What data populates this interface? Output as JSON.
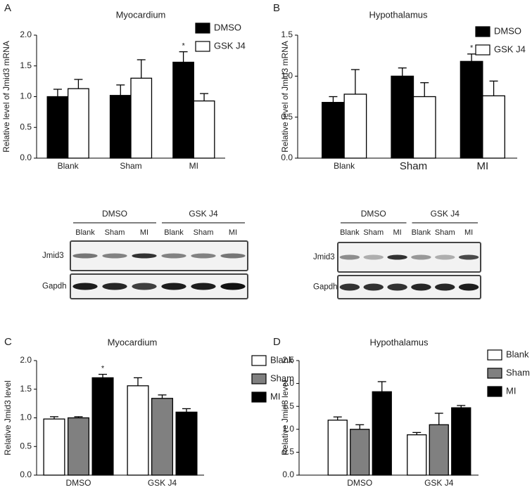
{
  "chart_data": [
    {
      "type": "bar",
      "panel": "A",
      "title": "Myocardium",
      "y_label": "Relative level of Jmid3 mRNA",
      "categories": [
        "Blank",
        "Sham",
        "MI"
      ],
      "series": [
        {
          "name": "DMSO",
          "color": "#000000",
          "values": [
            1.0,
            1.02,
            1.56
          ],
          "errors": [
            0.12,
            0.17,
            0.17
          ]
        },
        {
          "name": "GSK J4",
          "color": "#ffffff",
          "values": [
            1.13,
            1.3,
            0.93
          ],
          "errors": [
            0.15,
            0.3,
            0.12
          ]
        }
      ],
      "ylim": [
        0,
        2
      ],
      "yticks": [
        {
          "value": 0,
          "label": "0.0"
        },
        {
          "value": 0.5,
          "label": "0.5"
        },
        {
          "value": 1,
          "label": "1.0"
        },
        {
          "value": 1.5,
          "label": "1.5"
        },
        {
          "value": 2,
          "label": "2.0"
        }
      ],
      "annotations": [
        {
          "text": "*",
          "category": "MI",
          "series": "DMSO"
        }
      ]
    },
    {
      "type": "bar",
      "panel": "B",
      "title": "Hypothalamus",
      "y_label": "Relative level of Jmid3 mRNA",
      "categories": [
        "Blank",
        "Sham",
        "MI"
      ],
      "series": [
        {
          "name": "DMSO",
          "color": "#000000",
          "values": [
            0.68,
            1.0,
            1.18
          ],
          "errors": [
            0.07,
            0.1,
            0.09
          ]
        },
        {
          "name": "GSK J4",
          "color": "#ffffff",
          "values": [
            0.78,
            0.75,
            0.76
          ],
          "errors": [
            0.3,
            0.17,
            0.18
          ]
        }
      ],
      "ylim": [
        0,
        1.5
      ],
      "yticks": [
        {
          "value": 0,
          "label": "0.0"
        },
        {
          "value": 0.5,
          "label": "0.5"
        },
        {
          "value": 1,
          "label": "1.0"
        },
        {
          "value": 1.5,
          "label": "1.5"
        }
      ],
      "annotations": [
        {
          "text": "*",
          "category": "MI",
          "series": "DMSO"
        }
      ]
    },
    {
      "type": "bar",
      "panel": "C",
      "title": "Myocardium",
      "y_label": "Relative Jmid3 level",
      "categories": [
        "DMSO",
        "GSK J4"
      ],
      "series": [
        {
          "name": "Blank",
          "color": "#ffffff",
          "values": [
            0.98,
            1.56
          ],
          "errors": [
            0.04,
            0.14
          ]
        },
        {
          "name": "Sham",
          "color": "#808080",
          "values": [
            1.0,
            1.34
          ],
          "errors": [
            0.02,
            0.06
          ]
        },
        {
          "name": "MI",
          "color": "#000000",
          "values": [
            1.7,
            1.1
          ],
          "errors": [
            0.06,
            0.06
          ]
        }
      ],
      "ylim": [
        0,
        2
      ],
      "yticks": [
        {
          "value": 0,
          "label": "0.0"
        },
        {
          "value": 0.5,
          "label": "0.5"
        },
        {
          "value": 1,
          "label": "1.0"
        },
        {
          "value": 1.5,
          "label": "1.5"
        },
        {
          "value": 2,
          "label": "2.0"
        }
      ],
      "annotations": [
        {
          "text": "*",
          "category": "DMSO",
          "series": "MI"
        }
      ]
    },
    {
      "type": "bar",
      "panel": "D",
      "title": "Hypothalamus",
      "y_label": "Relative Jmid3 level",
      "categories": [
        "DMSO",
        "GSK J4"
      ],
      "series": [
        {
          "name": "Blank",
          "color": "#ffffff",
          "values": [
            1.2,
            0.88
          ],
          "errors": [
            0.07,
            0.05
          ]
        },
        {
          "name": "Sham",
          "color": "#808080",
          "values": [
            1.0,
            1.1
          ],
          "errors": [
            0.1,
            0.25
          ]
        },
        {
          "name": "MI",
          "color": "#000000",
          "values": [
            1.82,
            1.47
          ],
          "errors": [
            0.22,
            0.05
          ]
        }
      ],
      "ylim": [
        0,
        2.5
      ],
      "yticks": [
        {
          "value": 0,
          "label": "0.0"
        },
        {
          "value": 0.5,
          "label": "0.5"
        },
        {
          "value": 1,
          "label": "1.0"
        },
        {
          "value": 1.5,
          "label": "1.5"
        },
        {
          "value": 2,
          "label": "2.0"
        },
        {
          "value": 2.5,
          "label": "2.5"
        }
      ]
    }
  ],
  "blots": [
    {
      "groups": [
        "DMSO",
        "GSK J4"
      ],
      "lanes": [
        "Blank",
        "Sham",
        "MI",
        "Blank",
        "Sham",
        "MI"
      ],
      "rows": [
        "Jmid3",
        "Gapdh"
      ]
    },
    {
      "groups": [
        "DMSO",
        "GSK J4"
      ],
      "lanes": [
        "Blank",
        "Sham",
        "MI",
        "Blank",
        "Sham",
        "MI"
      ],
      "rows": [
        "Jmid3",
        "Gapdh"
      ]
    }
  ]
}
